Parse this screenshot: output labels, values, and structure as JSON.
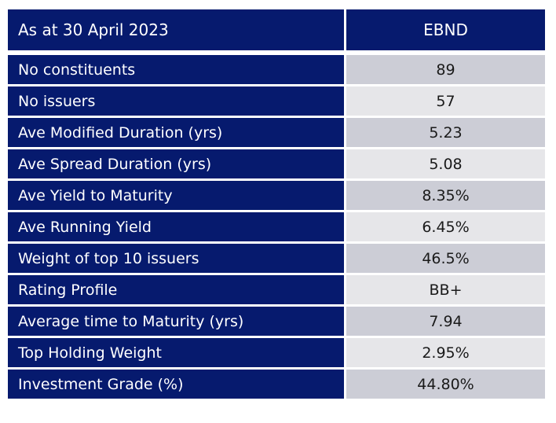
{
  "table": {
    "header_label": "As at 30 April 2023",
    "header_value": "EBND",
    "rows": [
      {
        "label": "No constituents",
        "value": "89"
      },
      {
        "label": "No issuers",
        "value": "57"
      },
      {
        "label": "Ave Modified Duration (yrs)",
        "value": "5.23"
      },
      {
        "label": "Ave Spread Duration (yrs)",
        "value": "5.08"
      },
      {
        "label": "Ave Yield to Maturity",
        "value": "8.35%"
      },
      {
        "label": "Ave Running Yield",
        "value": "6.45%"
      },
      {
        "label": "Weight of top 10 issuers",
        "value": "46.5%"
      },
      {
        "label": "Rating Profile",
        "value": "BB+"
      },
      {
        "label": "Average time to Maturity (yrs)",
        "value": "7.94"
      },
      {
        "label": "Top Holding Weight",
        "value": "2.95%"
      },
      {
        "label": "Investment Grade (%)",
        "value": "44.80%"
      }
    ]
  },
  "colors": {
    "header_bg": "#061a6e",
    "value_bg_odd": "#cccdd6",
    "value_bg_even": "#e6e6e9"
  }
}
